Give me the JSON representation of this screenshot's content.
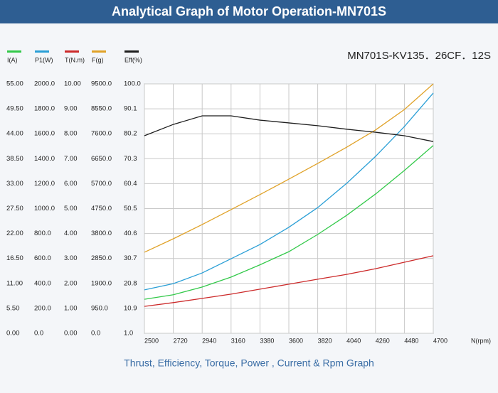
{
  "chart_data": {
    "type": "line",
    "title": "Analytical Graph of Motor Operation-MN701S",
    "subtitle": "MN701S-KV135．26CF．12S",
    "x_label": "N(rpm)",
    "caption": "Thrust, Efficiency, Torque, Power , Current & Rpm Graph",
    "grid": true,
    "x": [
      2500,
      2720,
      2940,
      3160,
      3380,
      3600,
      3820,
      4040,
      4260,
      4480,
      4700
    ],
    "xlim": [
      2500,
      4700
    ],
    "xticks": [
      2500,
      2720,
      2940,
      3160,
      3380,
      3600,
      3820,
      4040,
      4260,
      4480,
      4700
    ],
    "series": [
      {
        "name": "I(A)",
        "color": "#33c94a",
        "values": [
          7.5,
          8.5,
          10.2,
          12.4,
          15.1,
          18.0,
          21.8,
          26.0,
          30.7,
          35.9,
          41.4
        ],
        "ylim": [
          0,
          55
        ],
        "yticks": [
          {
            "value": 0,
            "label": "0.00"
          },
          {
            "value": 5.5,
            "label": "5.50"
          },
          {
            "value": 11,
            "label": "11.00"
          },
          {
            "value": 16.5,
            "label": "16.50"
          },
          {
            "value": 22,
            "label": "22.00"
          },
          {
            "value": 27.5,
            "label": "27.50"
          },
          {
            "value": 33,
            "label": "33.00"
          },
          {
            "value": 38.5,
            "label": "38.50"
          },
          {
            "value": 44,
            "label": "44.00"
          },
          {
            "value": 49.5,
            "label": "49.50"
          },
          {
            "value": 55,
            "label": "55.00"
          }
        ]
      },
      {
        "name": "P1(W)",
        "color": "#2a9fd6",
        "values": [
          348,
          398,
          484,
          598,
          712,
          850,
          1008,
          1202,
          1418,
          1658,
          1926
        ],
        "ylim": [
          0,
          2000
        ],
        "yticks": [
          {
            "value": 0,
            "label": "0.0"
          },
          {
            "value": 200,
            "label": "200.0"
          },
          {
            "value": 400,
            "label": "400.0"
          },
          {
            "value": 600,
            "label": "600.0"
          },
          {
            "value": 800,
            "label": "800.0"
          },
          {
            "value": 1000,
            "label": "1000.0"
          },
          {
            "value": 1200,
            "label": "1200.0"
          },
          {
            "value": 1400,
            "label": "1400.0"
          },
          {
            "value": 1600,
            "label": "1600.0"
          },
          {
            "value": 1800,
            "label": "1800.0"
          },
          {
            "value": 2000,
            "label": "2000.0"
          }
        ]
      },
      {
        "name": "T(N.m)",
        "color": "#cc2a2a",
        "values": [
          1.08,
          1.23,
          1.4,
          1.57,
          1.77,
          1.97,
          2.17,
          2.36,
          2.59,
          2.85,
          3.11
        ],
        "ylim": [
          0,
          10
        ],
        "yticks": [
          {
            "value": 0,
            "label": "0.00"
          },
          {
            "value": 1,
            "label": "1.00"
          },
          {
            "value": 2,
            "label": "2.00"
          },
          {
            "value": 3,
            "label": "3.00"
          },
          {
            "value": 4,
            "label": "4.00"
          },
          {
            "value": 5,
            "label": "5.00"
          },
          {
            "value": 6,
            "label": "6.00"
          },
          {
            "value": 7,
            "label": "7.00"
          },
          {
            "value": 8,
            "label": "8.00"
          },
          {
            "value": 9,
            "label": "9.00"
          },
          {
            "value": 10,
            "label": "10.00"
          }
        ]
      },
      {
        "name": "F(g)",
        "color": "#e0a228",
        "values": [
          3088,
          3600,
          4142,
          4712,
          5282,
          5871,
          6470,
          7087,
          7743,
          8522,
          9500
        ],
        "ylim": [
          0,
          9500
        ],
        "yticks": [
          {
            "value": 0,
            "label": "0.0"
          },
          {
            "value": 950,
            "label": "950.0"
          },
          {
            "value": 1900,
            "label": "1900.0"
          },
          {
            "value": 2850,
            "label": "2850.0"
          },
          {
            "value": 3800,
            "label": "3800.0"
          },
          {
            "value": 4750,
            "label": "4750.0"
          },
          {
            "value": 5700,
            "label": "5700.0"
          },
          {
            "value": 6650,
            "label": "6650.0"
          },
          {
            "value": 7600,
            "label": "7600.0"
          },
          {
            "value": 8550,
            "label": "8550.0"
          },
          {
            "value": 9500,
            "label": "9500.0"
          }
        ]
      },
      {
        "name": "Eff(%)",
        "color": "#1e1e1e",
        "values": [
          79.4,
          83.9,
          87.3,
          87.3,
          85.6,
          84.5,
          83.4,
          82.0,
          80.8,
          79.4,
          77.1
        ],
        "ylim": [
          1,
          100
        ],
        "yticks": [
          {
            "value": 1,
            "label": "1.0"
          },
          {
            "value": 10.9,
            "label": "10.9"
          },
          {
            "value": 20.8,
            "label": "20.8"
          },
          {
            "value": 30.7,
            "label": "30.7"
          },
          {
            "value": 40.6,
            "label": "40.6"
          },
          {
            "value": 50.5,
            "label": "50.5"
          },
          {
            "value": 60.4,
            "label": "60.4"
          },
          {
            "value": 70.3,
            "label": "70.3"
          },
          {
            "value": 80.2,
            "label": "80.2"
          },
          {
            "value": 90.1,
            "label": "90.1"
          },
          {
            "value": 100,
            "label": "100.0"
          }
        ]
      }
    ]
  }
}
